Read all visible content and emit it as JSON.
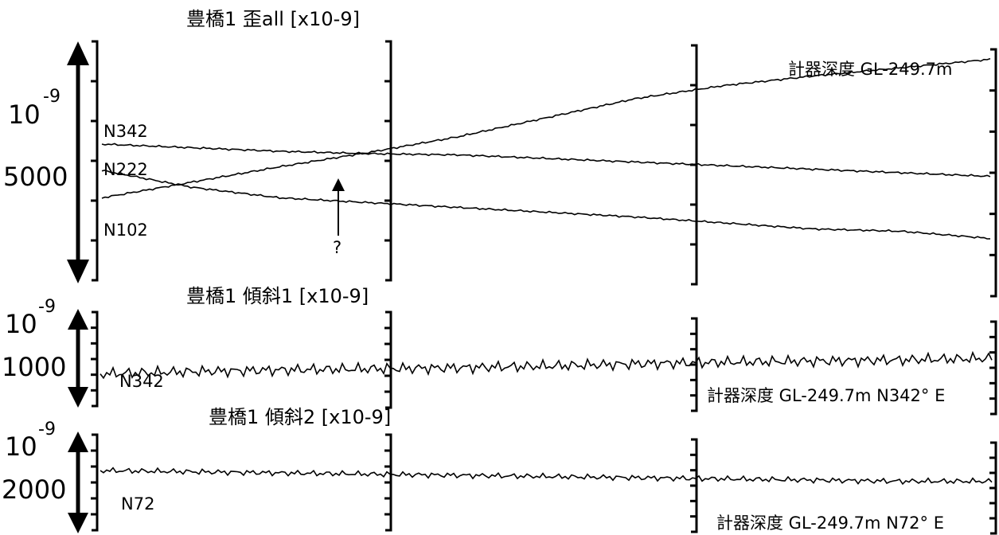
{
  "chart_data": [
    {
      "type": "line",
      "title": "豊橋1 歪all [x10-9]",
      "scale_unit": "10",
      "scale_exp": "-9",
      "scale_value": "5000",
      "depth_label": "計器深度 GL-249.7m",
      "annotation": "?",
      "x": [
        0,
        1,
        2,
        3,
        4,
        5,
        6,
        7,
        8,
        9,
        10
      ],
      "ylim": [
        0,
        10000
      ],
      "series": [
        {
          "name": "N342",
          "values": [
            5700,
            5550,
            5400,
            5300,
            5250,
            5100,
            4950,
            4800,
            4650,
            4500,
            4350
          ]
        },
        {
          "name": "N222",
          "values": [
            4600,
            3900,
            3450,
            3250,
            3050,
            2850,
            2650,
            2400,
            2150,
            2050,
            1750
          ]
        },
        {
          "name": "N102",
          "values": [
            3450,
            4100,
            4750,
            5350,
            6000,
            6800,
            7600,
            8150,
            8550,
            8900,
            9250
          ]
        }
      ]
    },
    {
      "type": "line",
      "title": "豊橋1 傾斜1 [x10-9]",
      "scale_unit": "10",
      "scale_exp": "-9",
      "scale_value": "1000",
      "depth_label": "計器深度 GL-249.7m N342° E",
      "x": [
        0,
        1,
        2,
        3,
        4,
        5,
        6,
        7,
        8,
        9,
        10
      ],
      "ylim": [
        0,
        2000
      ],
      "series": [
        {
          "name": "N342",
          "values": [
            720,
            760,
            790,
            810,
            830,
            860,
            900,
            930,
            950,
            970,
            1000
          ]
        }
      ]
    },
    {
      "type": "line",
      "title": "豊橋1 傾斜2 [x10-9]",
      "scale_unit": "10",
      "scale_exp": "-9",
      "scale_value": "2000",
      "depth_label": "計器深度 GL-249.7m N72° E",
      "x": [
        0,
        1,
        2,
        3,
        4,
        5,
        6,
        7,
        8,
        9,
        10
      ],
      "ylim": [
        0,
        4000
      ],
      "series": [
        {
          "name": "N72",
          "values": [
            2300,
            2250,
            2200,
            2150,
            2100,
            2050,
            2000,
            1950,
            1900,
            1850,
            1850
          ]
        }
      ]
    }
  ]
}
